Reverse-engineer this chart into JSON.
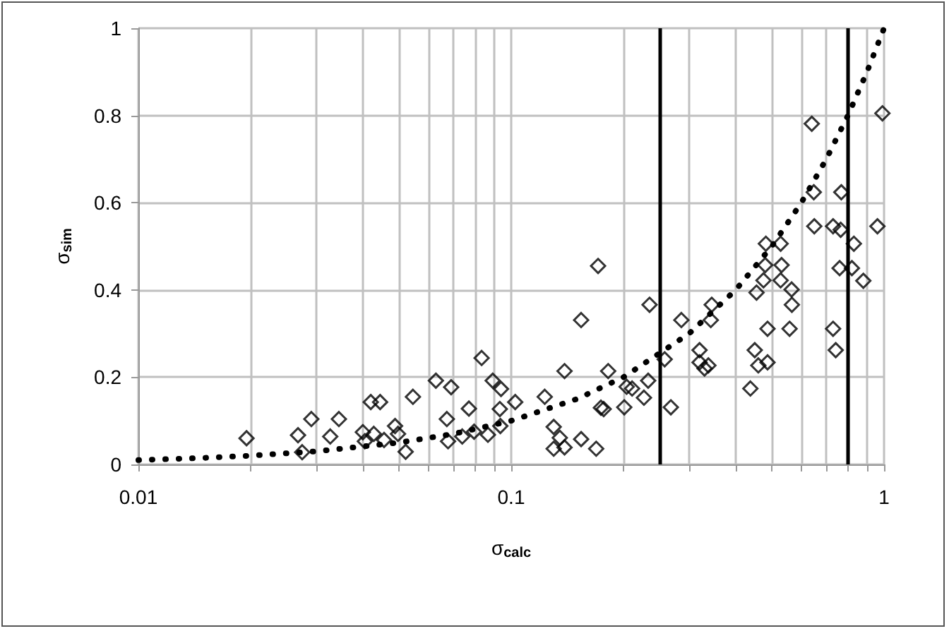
{
  "chart_data": {
    "type": "scatter",
    "xlabel": "σ$_{calc}$",
    "ylabel": "σ$_{sim}$",
    "log": "x",
    "grid": true,
    "xlim": [
      0.01,
      1
    ],
    "ylim": [
      0,
      1
    ],
    "xticks": [
      0.01,
      {
        "value": 0.02,
        "label": null
      },
      {
        "value": 0.03,
        "label": null
      },
      {
        "value": 0.04,
        "label": null
      },
      {
        "value": 0.05,
        "label": null
      },
      {
        "value": 0.06,
        "label": null
      },
      {
        "value": 0.07,
        "label": null
      },
      {
        "value": 0.08,
        "label": null
      },
      {
        "value": 0.09,
        "label": null
      },
      0.1,
      {
        "value": 0.2,
        "label": null
      },
      {
        "value": 0.3,
        "label": null
      },
      {
        "value": 0.4,
        "label": null
      },
      {
        "value": 0.5,
        "label": null
      },
      {
        "value": 0.6,
        "label": null
      },
      {
        "value": 0.7,
        "label": null
      },
      {
        "value": 0.8,
        "label": null
      },
      {
        "value": 0.9,
        "label": null
      },
      1
    ],
    "yticks": [
      0,
      0.2,
      0.4,
      0.6,
      0.8,
      1
    ],
    "ref_lines": [
      {
        "axis": "x",
        "value": 0.25,
        "color": "#000000",
        "line_style": "solid"
      },
      {
        "axis": "x",
        "value": 0.8,
        "color": "#000000",
        "line_style": "solid"
      }
    ],
    "series": [
      {
        "marker": "diamond",
        "color": "#000000",
        "x": [
          0.0195,
          0.0268,
          0.0275,
          0.0291,
          0.0327,
          0.0345,
          0.04,
          0.0405,
          0.042,
          0.0445,
          0.0428,
          0.0456,
          0.0488,
          0.0497,
          0.0521,
          0.0545,
          0.0628,
          0.069,
          0.0672,
          0.0677,
          0.0739,
          0.077,
          0.0795,
          0.0866,
          0.0833,
          0.0892,
          0.0939,
          0.0932,
          0.0935,
          0.1025,
          0.123,
          0.13,
          0.13,
          0.135,
          0.139,
          0.139,
          0.154,
          0.154,
          0.171,
          0.169,
          0.174,
          0.177,
          0.182,
          0.201,
          0.204,
          0.211,
          0.227,
          0.233,
          0.235,
          0.258,
          0.268,
          0.286,
          0.32,
          0.32,
          0.33,
          0.338,
          0.345,
          0.343,
          0.438,
          0.45,
          0.455,
          0.46,
          0.482,
          0.487,
          0.487,
          0.48,
          0.475,
          0.528,
          0.531,
          0.528,
          0.565,
          0.566,
          0.558,
          0.64,
          0.648,
          0.65,
          0.73,
          0.768,
          0.765,
          0.76,
          0.73,
          0.742,
          0.83,
          0.82,
          0.88,
          0.96,
          0.99
        ],
        "values": [
          0.06,
          0.067,
          0.028,
          0.104,
          0.064,
          0.104,
          0.074,
          0.053,
          0.143,
          0.143,
          0.07,
          0.056,
          0.088,
          0.07,
          0.029,
          0.155,
          0.192,
          0.177,
          0.104,
          0.053,
          0.064,
          0.128,
          0.075,
          0.068,
          0.244,
          0.192,
          0.173,
          0.127,
          0.088,
          0.143,
          0.155,
          0.086,
          0.036,
          0.061,
          0.039,
          0.214,
          0.058,
          0.331,
          0.455,
          0.036,
          0.13,
          0.127,
          0.214,
          0.131,
          0.178,
          0.174,
          0.153,
          0.192,
          0.366,
          0.241,
          0.131,
          0.331,
          0.262,
          0.234,
          0.22,
          0.227,
          0.366,
          0.331,
          0.174,
          0.262,
          0.394,
          0.227,
          0.506,
          0.234,
          0.311,
          0.457,
          0.422,
          0.506,
          0.457,
          0.422,
          0.401,
          0.366,
          0.311,
          0.781,
          0.624,
          0.546,
          0.546,
          0.624,
          0.538,
          0.45,
          0.311,
          0.262,
          0.506,
          0.45,
          0.421,
          0.546,
          0.805
        ]
      },
      {
        "type": "line",
        "marker": "none",
        "line_style": "dotted",
        "color": "#000000",
        "x": [
          0.01,
          0.015,
          0.02,
          0.03,
          0.05,
          0.07,
          0.1,
          0.15,
          0.2,
          0.3,
          0.4,
          0.5,
          0.6,
          0.7,
          0.8,
          0.9,
          1
        ],
        "values": [
          0.01,
          0.015,
          0.02,
          0.03,
          0.05,
          0.07,
          0.1,
          0.15,
          0.2,
          0.3,
          0.4,
          0.5,
          0.6,
          0.7,
          0.8,
          0.9,
          1
        ]
      }
    ]
  }
}
